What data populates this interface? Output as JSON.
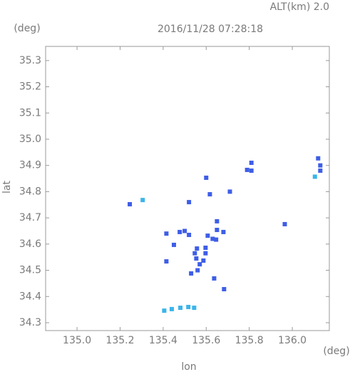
{
  "chart_data": {
    "type": "scatter",
    "title": "2016/11/28 07:28:18",
    "subtitle": "ALT(km) 2.0",
    "x_label": "lon",
    "y_label": "lat",
    "x_unit": "(deg)",
    "y_unit": "(deg)",
    "xlim": [
      134.854,
      136.172
    ],
    "ylim": [
      34.27,
      35.354
    ],
    "xticks": [
      {
        "value": 135.0,
        "label": "135.0"
      },
      135.2,
      135.4,
      135.6,
      135.8,
      {
        "value": 136.0,
        "label": "136.0"
      }
    ],
    "yticks": [
      34.3,
      34.4,
      34.5,
      34.6,
      34.7,
      34.8,
      34.9,
      {
        "value": 35.0,
        "label": "35.0"
      },
      35.1,
      35.2,
      35.3
    ],
    "grid": false,
    "series": [
      {
        "color": "#3e5ee6",
        "x": [
          135.245,
          135.6,
          135.617,
          135.71,
          135.52,
          135.79,
          135.81,
          135.81,
          136.12,
          136.13,
          136.13,
          135.965,
          135.65,
          135.65,
          135.68,
          135.607,
          135.63,
          135.646,
          135.415,
          135.5,
          135.52,
          135.45,
          135.557,
          135.597,
          135.547,
          135.554,
          135.57,
          135.56,
          135.587,
          135.597,
          135.53,
          135.637,
          135.683,
          135.415,
          135.477
        ],
        "values": [
          34.752,
          34.853,
          34.79,
          34.8,
          34.76,
          34.883,
          34.88,
          34.91,
          34.927,
          34.9,
          34.88,
          34.676,
          34.687,
          34.654,
          34.646,
          34.632,
          34.62,
          34.617,
          34.64,
          34.65,
          34.635,
          34.597,
          34.583,
          34.586,
          34.565,
          34.545,
          34.523,
          34.5,
          34.537,
          34.565,
          34.488,
          34.469,
          34.428,
          34.534,
          34.646
        ]
      },
      {
        "color": "#3cb4ea",
        "x": [
          135.405,
          135.44,
          135.48,
          135.517,
          135.544,
          136.105,
          135.305
        ],
        "values": [
          34.346,
          34.352,
          34.357,
          34.36,
          34.357,
          34.857,
          34.768
        ]
      }
    ]
  }
}
